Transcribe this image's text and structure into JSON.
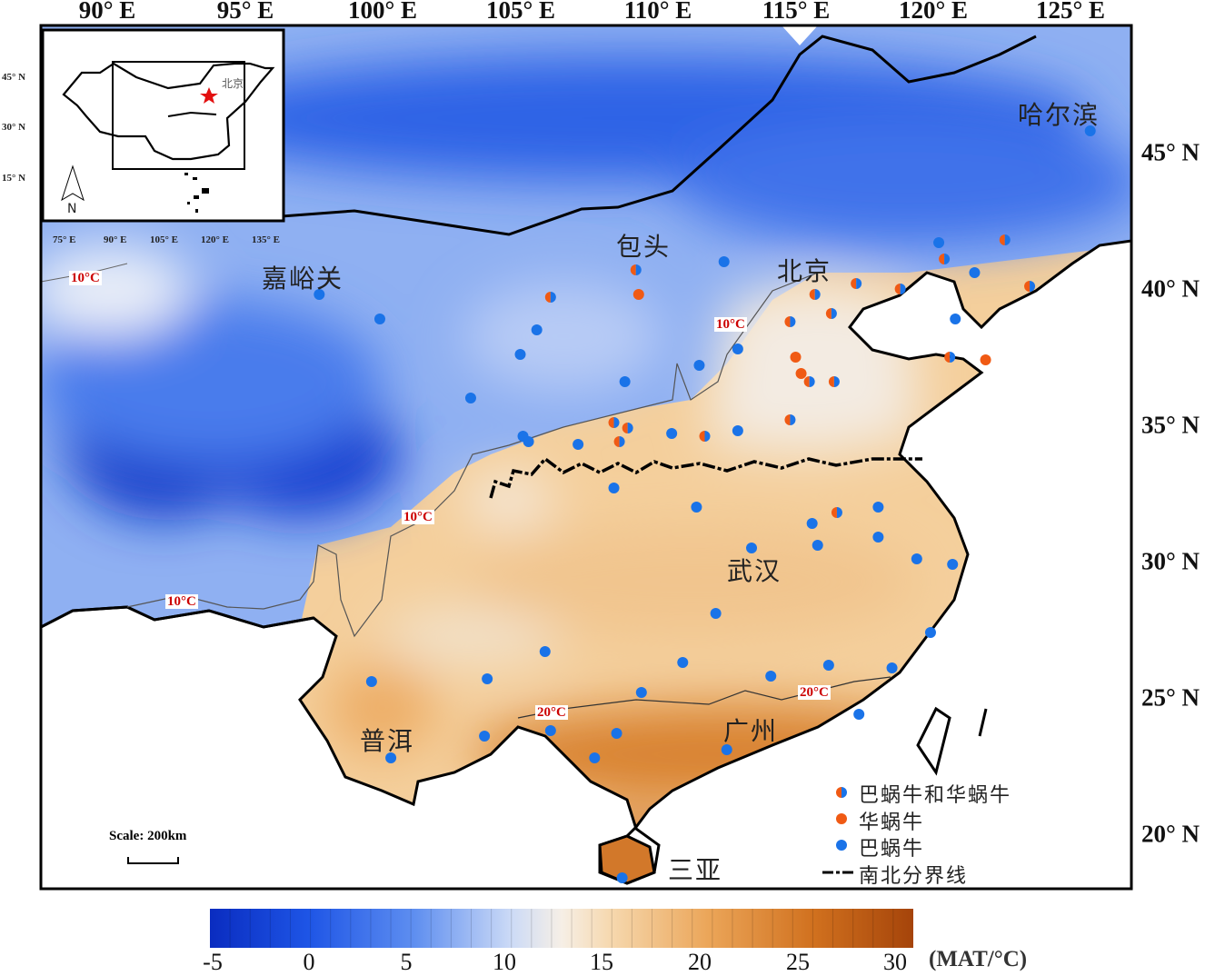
{
  "axes": {
    "longitude_labels": [
      "90° E",
      "95° E",
      "100° E",
      "105° E",
      "110° E",
      "115° E",
      "120° E",
      "125° E"
    ],
    "latitude_labels": [
      "45° N",
      "40° N",
      "35° N",
      "30° N",
      "25° N",
      "20° N"
    ]
  },
  "inset": {
    "capital_label": "北京",
    "north_label": "N",
    "longitude_labels": [
      "75° E",
      "90° E",
      "105° E",
      "120° E",
      "135° E"
    ],
    "latitude_labels": [
      "45° N",
      "30° N",
      "15° N"
    ]
  },
  "cities": {
    "harbin": "哈尔滨",
    "baotou": "包头",
    "beijing": "北京",
    "jiayuguan": "嘉峪关",
    "wuhan": "武汉",
    "puer": "普洱",
    "guangzhou": "广州",
    "sanya": "三亚"
  },
  "isotherm_labels": [
    "10°C",
    "10°C",
    "10°C",
    "10°C",
    "20°C",
    "20°C"
  ],
  "scale": "Scale: 200km",
  "legend": {
    "both": "巴蜗牛和华蜗牛",
    "huawoniu": "华蜗牛",
    "bawoniu": "巴蜗牛",
    "boundary": "南北分界线"
  },
  "colors": {
    "bawoniu": "#1a73e8",
    "huawoniu": "#f05a14"
  },
  "colorbar": {
    "unit": "(MAT/°C)",
    "ticks": [
      "-5",
      "0",
      "5",
      "10",
      "15",
      "20",
      "25",
      "30"
    ],
    "min": -5,
    "max": 30
  },
  "sites": {
    "bawoniu": [
      [
        125.7,
        45.8
      ],
      [
        97.7,
        39.8
      ],
      [
        99.9,
        38.9
      ],
      [
        105.6,
        38.5
      ],
      [
        105.0,
        37.6
      ],
      [
        112.4,
        41.0
      ],
      [
        120.2,
        41.7
      ],
      [
        121.5,
        40.6
      ],
      [
        120.8,
        38.9
      ],
      [
        112.9,
        37.8
      ],
      [
        111.5,
        37.2
      ],
      [
        108.8,
        36.6
      ],
      [
        103.2,
        36.0
      ],
      [
        105.1,
        34.6
      ],
      [
        105.3,
        34.4
      ],
      [
        107.1,
        34.3
      ],
      [
        110.5,
        34.7
      ],
      [
        112.9,
        34.8
      ],
      [
        108.4,
        32.7
      ],
      [
        111.4,
        32.0
      ],
      [
        118.0,
        32.0
      ],
      [
        115.6,
        31.4
      ],
      [
        113.4,
        30.5
      ],
      [
        115.8,
        30.6
      ],
      [
        118.0,
        30.9
      ],
      [
        119.4,
        30.1
      ],
      [
        120.7,
        29.9
      ],
      [
        112.1,
        28.1
      ],
      [
        119.9,
        27.4
      ],
      [
        105.9,
        26.7
      ],
      [
        110.9,
        26.3
      ],
      [
        116.2,
        26.2
      ],
      [
        118.5,
        26.1
      ],
      [
        99.6,
        25.6
      ],
      [
        103.8,
        25.7
      ],
      [
        114.1,
        25.8
      ],
      [
        109.4,
        25.2
      ],
      [
        117.3,
        24.4
      ],
      [
        106.1,
        23.8
      ],
      [
        108.5,
        23.7
      ],
      [
        103.7,
        23.6
      ],
      [
        112.5,
        23.1
      ],
      [
        107.7,
        22.8
      ],
      [
        100.3,
        22.8
      ],
      [
        108.7,
        18.4
      ]
    ],
    "both": [
      [
        106.1,
        39.7
      ],
      [
        109.2,
        40.7
      ],
      [
        122.6,
        41.8
      ],
      [
        117.2,
        40.2
      ],
      [
        118.8,
        40.0
      ],
      [
        120.4,
        41.1
      ],
      [
        123.5,
        40.1
      ],
      [
        115.7,
        39.8
      ],
      [
        114.8,
        38.8
      ],
      [
        116.3,
        39.1
      ],
      [
        115.5,
        36.6
      ],
      [
        116.4,
        36.6
      ],
      [
        108.4,
        35.1
      ],
      [
        108.9,
        34.9
      ],
      [
        108.6,
        34.4
      ],
      [
        111.7,
        34.6
      ],
      [
        114.8,
        35.2
      ],
      [
        116.5,
        31.8
      ],
      [
        120.6,
        37.5
      ]
    ],
    "huawoniu": [
      [
        109.3,
        39.8
      ],
      [
        115.0,
        37.5
      ],
      [
        115.2,
        36.9
      ],
      [
        121.9,
        37.4
      ]
    ]
  }
}
